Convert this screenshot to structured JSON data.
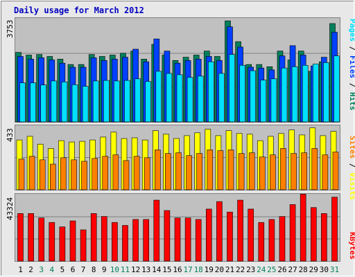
{
  "chart_data": {
    "type": "bar",
    "title": "Daily usage for March 2012",
    "categories": [
      "1",
      "2",
      "3",
      "4",
      "5",
      "6",
      "7",
      "8",
      "9",
      "10",
      "11",
      "12",
      "13",
      "14",
      "15",
      "16",
      "17",
      "18",
      "19",
      "20",
      "21",
      "22",
      "23",
      "24",
      "25",
      "26",
      "27",
      "28",
      "29",
      "30",
      "31"
    ],
    "weekend_days": [
      "3",
      "4",
      "10",
      "11",
      "17",
      "18",
      "24",
      "25",
      "31"
    ],
    "colors": {
      "hits": "#00805c",
      "files": "#0040ff",
      "pages": "#00e0ff",
      "visits": "#ffff00",
      "sites": "#ff8000",
      "kbytes": "#ff0000",
      "title": "#0000c0",
      "weekday_label": "#000000",
      "weekend_label": "#00805c"
    },
    "panels": [
      {
        "id": "traffic",
        "max_label": "3753",
        "ylim": [
          0,
          3753
        ],
        "legend": [
          {
            "text": "Pages",
            "color": "#00e0ff"
          },
          {
            "text": " / ",
            "color": "#000000"
          },
          {
            "text": "Files",
            "color": "#0040ff"
          },
          {
            "text": " / ",
            "color": "#000000"
          },
          {
            "text": "Hits",
            "color": "#00805c"
          }
        ],
        "series": [
          {
            "name": "Hits",
            "color": "#00805c",
            "values": [
              2580,
              2480,
              2500,
              2430,
              2330,
              2130,
              2130,
              2500,
              2430,
              2480,
              2550,
              2630,
              2330,
              2880,
              2480,
              2280,
              2400,
              2480,
              2630,
              2430,
              3750,
              2980,
              2130,
              2130,
              2050,
              2630,
              2300,
              2630,
              1880,
              2230,
              3650
            ]
          },
          {
            "name": "Files",
            "color": "#0040ff",
            "values": [
              2430,
              2330,
              2380,
              2300,
              2180,
              2030,
              2030,
              2380,
              2280,
              2330,
              2400,
              2700,
              2230,
              3080,
              2630,
              2180,
              2280,
              2330,
              2430,
              2280,
              3530,
              2780,
              2030,
              2000,
              1930,
              2450,
              2830,
              2480,
              2080,
              2400,
              3330
            ]
          },
          {
            "name": "Pages",
            "color": "#00e0ff",
            "values": [
              1450,
              1450,
              1370,
              1520,
              1480,
              1380,
              1320,
              1520,
              1540,
              1520,
              1540,
              1600,
              1500,
              1880,
              1800,
              1750,
              1650,
              1700,
              2230,
              1800,
              2500,
              2100,
              1900,
              1550,
              1600,
              2000,
              2050,
              2100,
              2150,
              2200,
              2450
            ]
          }
        ]
      },
      {
        "id": "visitors",
        "max_label": "433",
        "ylim": [
          0,
          433
        ],
        "legend": [
          {
            "text": "Sites",
            "color": "#ff8000"
          },
          {
            "text": " / ",
            "color": "#000000"
          },
          {
            "text": "Visits",
            "color": "#ffff00"
          }
        ],
        "series": [
          {
            "name": "Visits",
            "color": "#ffff00",
            "values": [
              350,
              375,
              320,
              290,
              345,
              335,
              340,
              350,
              370,
              405,
              360,
              365,
              350,
              415,
              390,
              360,
              380,
              400,
              425,
              380,
              415,
              395,
              390,
              345,
              375,
              395,
              420,
              385,
              435,
              380,
              410
            ]
          },
          {
            "name": "Sites",
            "color": "#ff8000",
            "values": [
              215,
              235,
              210,
              180,
              225,
              210,
              200,
              220,
              235,
              245,
              205,
              235,
              225,
              280,
              255,
              260,
              240,
              255,
              280,
              275,
              280,
              255,
              260,
              230,
              245,
              290,
              255,
              260,
              290,
              245,
              265
            ]
          }
        ]
      },
      {
        "id": "volume",
        "max_label": "43324",
        "ylim": [
          0,
          43324
        ],
        "legend": [
          {
            "text": "KBytes",
            "color": "#ff0000"
          }
        ],
        "series": [
          {
            "name": "KBytes",
            "color": "#ff0000",
            "values": [
              32000,
              32000,
              29000,
              26000,
              23000,
              27000,
              21000,
              32000,
              30000,
              26000,
              24000,
              28000,
              28000,
              41000,
              34000,
              29000,
              29000,
              28000,
              35000,
              40000,
              33000,
              41000,
              35000,
              26000,
              28000,
              30000,
              38000,
              45000,
              36000,
              32000,
              43000
            ]
          }
        ]
      }
    ]
  }
}
